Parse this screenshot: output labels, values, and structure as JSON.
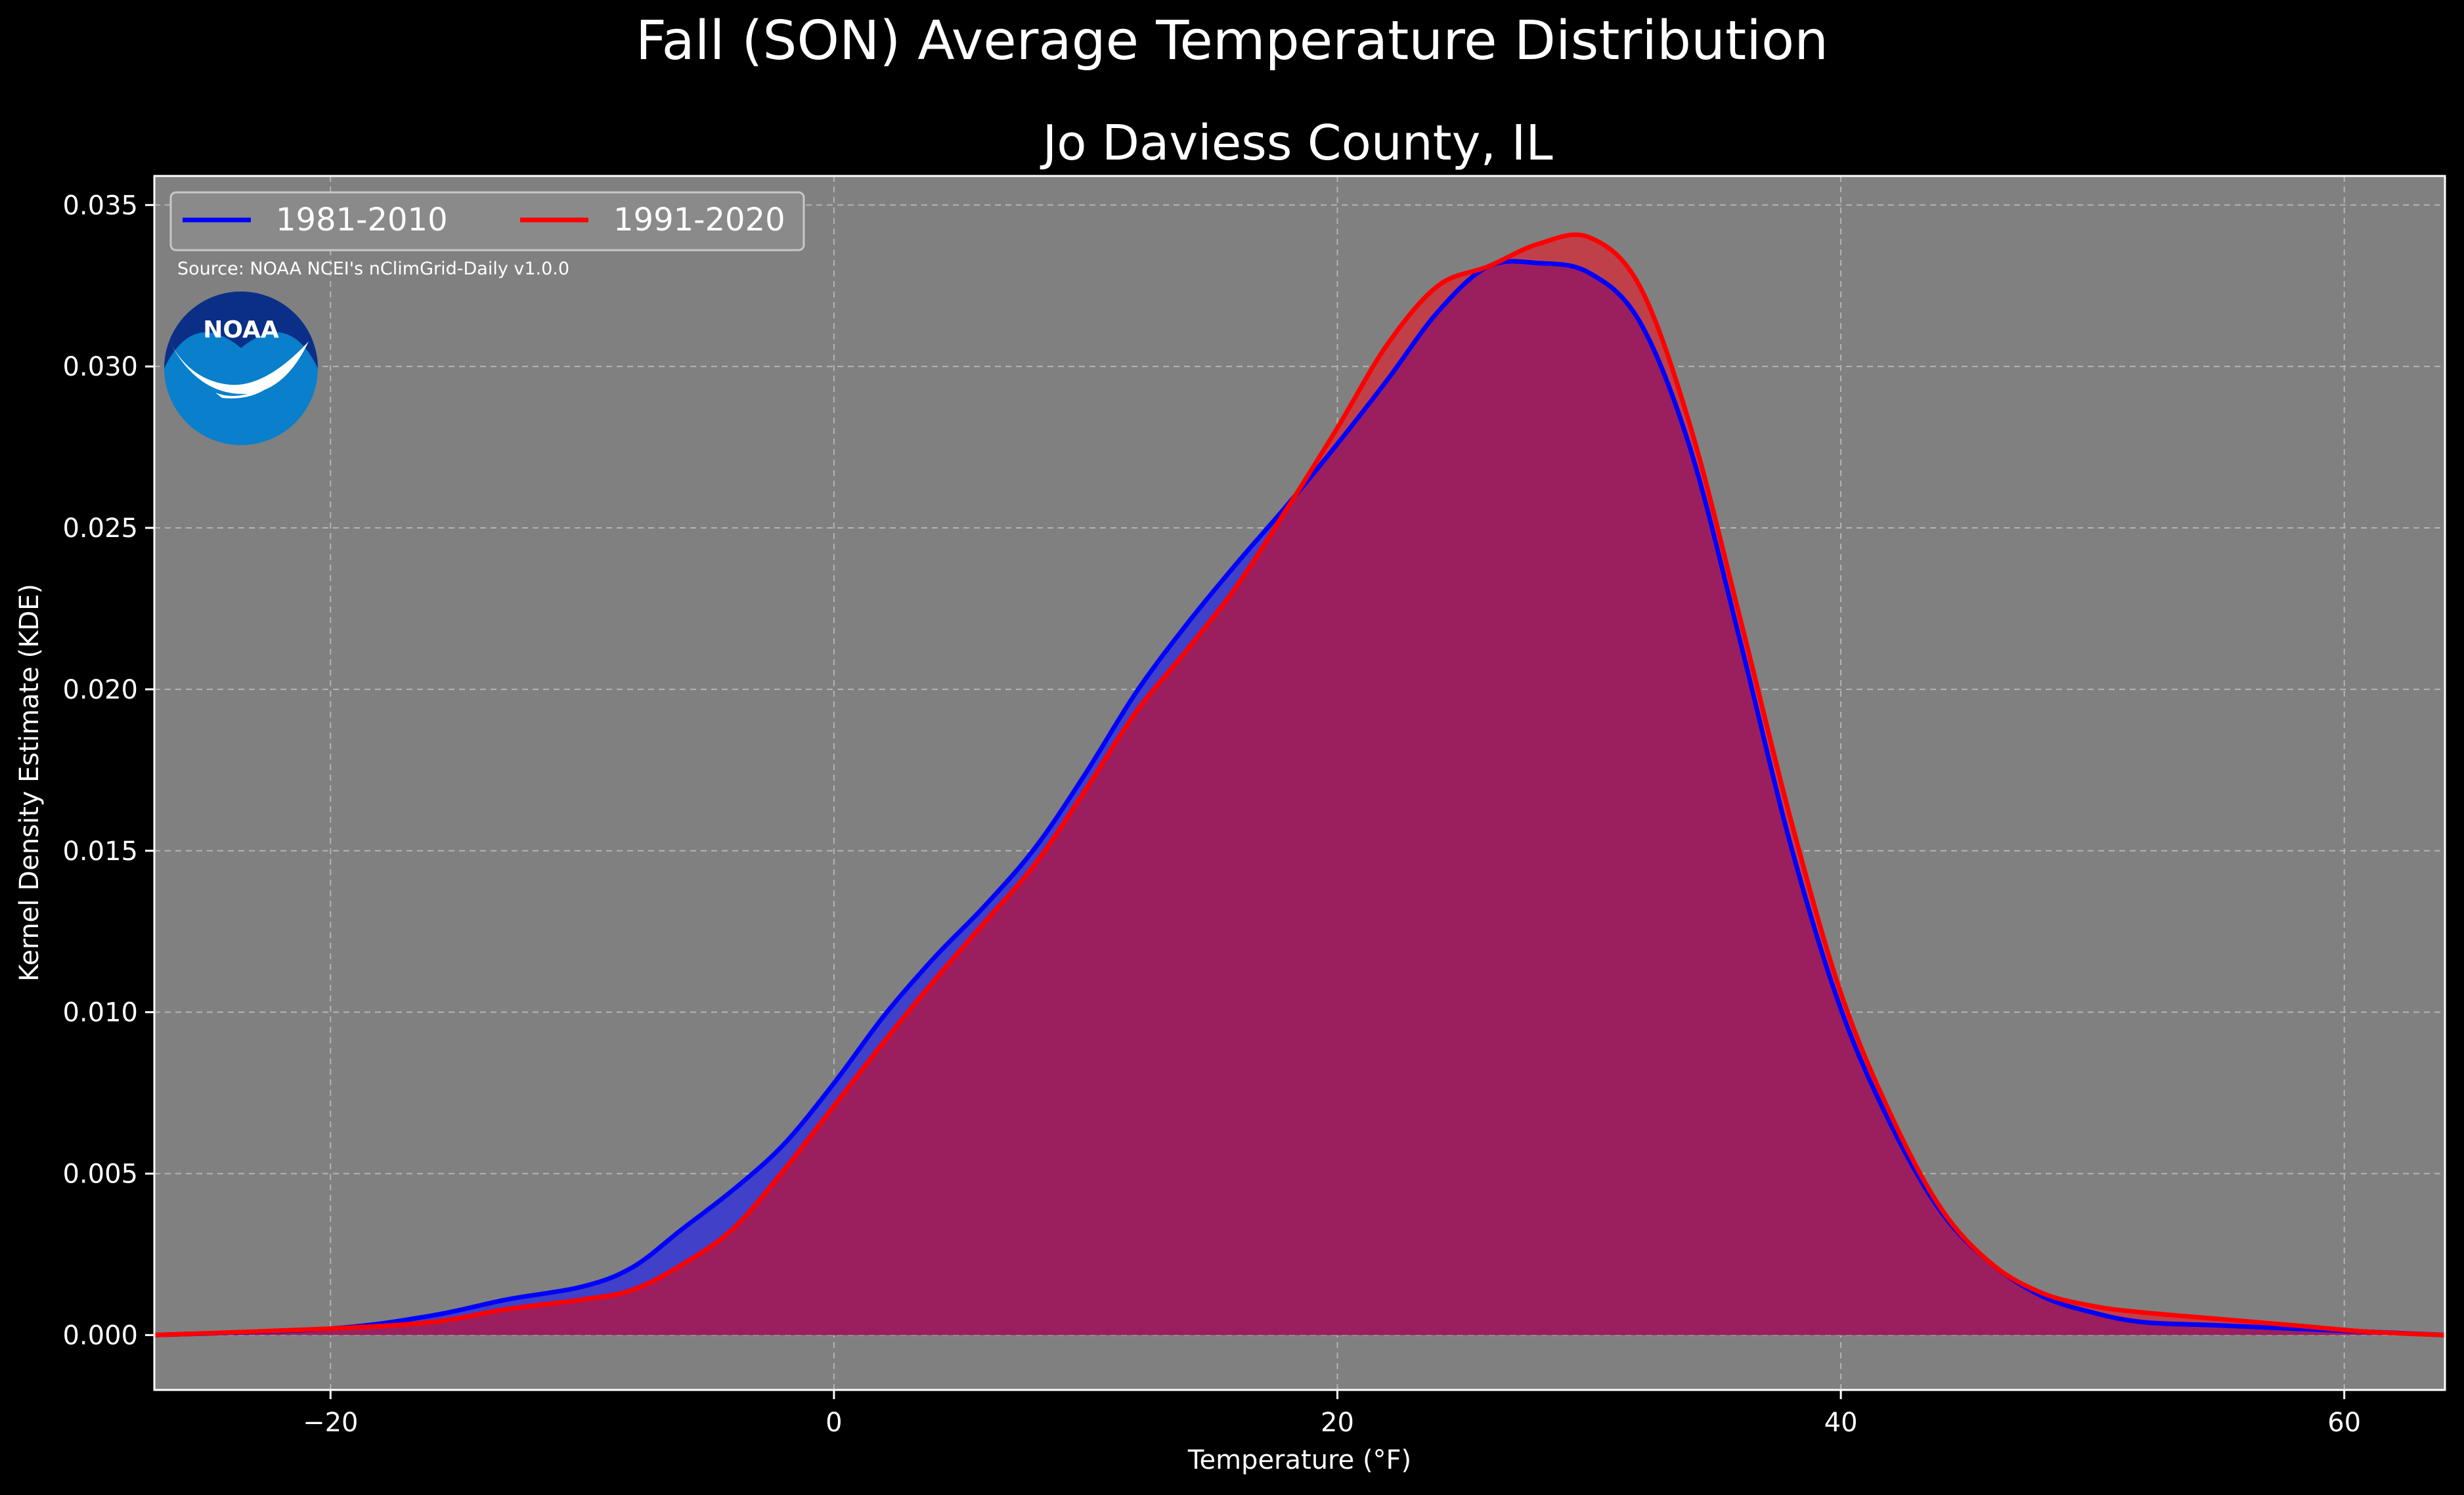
{
  "chart_data": {
    "type": "area",
    "suptitle": "Fall (SON) Average Temperature Distribution",
    "title": "Jo Daviess County, IL",
    "xlabel": "Temperature (°F)",
    "ylabel": "Kernel Density Estimate (KDE)",
    "source": "Source: NOAA NCEI's nClimGrid-Daily v1.0.0",
    "logo_text": "NOAA",
    "xlim": [
      -27,
      64
    ],
    "ylim": [
      -0.0017,
      0.0359
    ],
    "xticks": [
      -20,
      0,
      20,
      40,
      60
    ],
    "xtick_labels": [
      "−20",
      "0",
      "20",
      "40",
      "60"
    ],
    "yticks": [
      0.0,
      0.005,
      0.01,
      0.015,
      0.02,
      0.025,
      0.03,
      0.035
    ],
    "ytick_labels": [
      "0.000",
      "0.005",
      "0.010",
      "0.015",
      "0.020",
      "0.025",
      "0.030",
      "0.035"
    ],
    "grid": true,
    "legend_position": "top-left",
    "colors": {
      "figure_bg": "#000000",
      "axes_bg": "#808080",
      "text": "#ffffff",
      "overlap_fill": "#9b1f5e"
    },
    "series": [
      {
        "name": "1981-2010",
        "color": "#0000ff",
        "fill": "#4040c8",
        "x": [
          -27,
          -20,
          -16,
          -13,
          -10,
          -8,
          -6,
          -4,
          -2,
          0,
          2,
          4,
          6,
          8,
          10,
          12,
          14,
          16,
          18,
          20,
          22,
          24,
          26,
          28,
          30,
          32,
          34,
          36,
          38,
          40,
          42,
          44,
          46,
          48,
          50,
          52,
          55,
          58,
          61,
          64
        ],
        "y": [
          0.0,
          0.0002,
          0.0006,
          0.0011,
          0.0015,
          0.0021,
          0.0033,
          0.0045,
          0.0059,
          0.0078,
          0.0099,
          0.0117,
          0.0133,
          0.0151,
          0.0174,
          0.0199,
          0.022,
          0.0239,
          0.0257,
          0.0276,
          0.0296,
          0.0317,
          0.0331,
          0.0332,
          0.0329,
          0.0314,
          0.0275,
          0.0215,
          0.0152,
          0.0101,
          0.0065,
          0.0038,
          0.0022,
          0.0012,
          0.0007,
          0.0004,
          0.0003,
          0.0002,
          0.0001,
          0.0
        ]
      },
      {
        "name": "1991-2020",
        "color": "#ff0000",
        "fill": "#c0404a",
        "x": [
          -27,
          -20,
          -16,
          -13,
          -10,
          -8,
          -6,
          -4,
          -2,
          0,
          2,
          4,
          6,
          8,
          10,
          12,
          14,
          16,
          18,
          20,
          22,
          24,
          26,
          28,
          30,
          32,
          34,
          36,
          38,
          40,
          42,
          44,
          46,
          48,
          50,
          52,
          55,
          58,
          61,
          64
        ],
        "y": [
          0.0,
          0.0002,
          0.0004,
          0.0008,
          0.0011,
          0.0014,
          0.0022,
          0.0033,
          0.0051,
          0.0071,
          0.0091,
          0.011,
          0.0128,
          0.0146,
          0.0169,
          0.0193,
          0.0212,
          0.0232,
          0.0256,
          0.0281,
          0.0307,
          0.0325,
          0.0331,
          0.0338,
          0.034,
          0.0325,
          0.0282,
          0.0222,
          0.016,
          0.0106,
          0.0068,
          0.0039,
          0.0022,
          0.0013,
          0.0009,
          0.0007,
          0.0005,
          0.0003,
          0.0001,
          0.0
        ]
      }
    ]
  }
}
